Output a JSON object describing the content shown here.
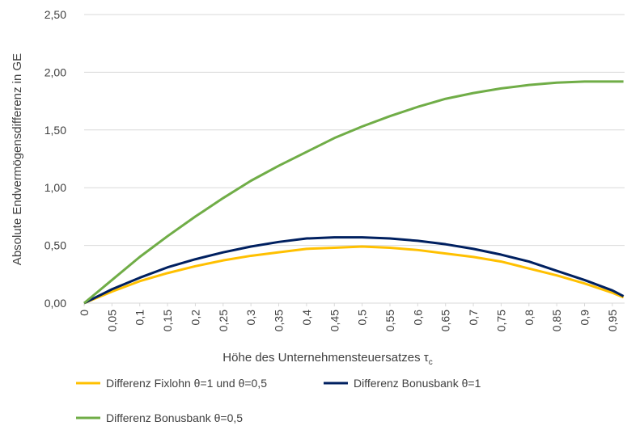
{
  "chart_data": {
    "type": "line",
    "y_label": "Absolute Endvermögensdifferenz in GE",
    "x_label": {
      "text": "Höhe des Unternehmensteuersatzes τ",
      "subscript": "c"
    },
    "x": [
      0,
      0.05,
      0.1,
      0.15,
      0.2,
      0.25,
      0.3,
      0.35,
      0.4,
      0.45,
      0.5,
      0.55,
      0.6,
      0.65,
      0.7,
      0.75,
      0.8,
      0.85,
      0.9,
      0.95,
      0.97
    ],
    "xlim": [
      0,
      0.972
    ],
    "xticks": [
      {
        "value": 0,
        "label": "0"
      },
      {
        "value": 0.05,
        "label": "0,05"
      },
      {
        "value": 0.1,
        "label": "0,1"
      },
      {
        "value": 0.15,
        "label": "0,15"
      },
      {
        "value": 0.2,
        "label": "0,2"
      },
      {
        "value": 0.25,
        "label": "0,25"
      },
      {
        "value": 0.3,
        "label": "0,3"
      },
      {
        "value": 0.35,
        "label": "0,35"
      },
      {
        "value": 0.4,
        "label": "0,4"
      },
      {
        "value": 0.45,
        "label": "0,45"
      },
      {
        "value": 0.5,
        "label": "0,5"
      },
      {
        "value": 0.55,
        "label": "0,55"
      },
      {
        "value": 0.6,
        "label": "0,6"
      },
      {
        "value": 0.65,
        "label": "0,65"
      },
      {
        "value": 0.7,
        "label": "0,7"
      },
      {
        "value": 0.75,
        "label": "0,75"
      },
      {
        "value": 0.8,
        "label": "0,8"
      },
      {
        "value": 0.85,
        "label": "0,85"
      },
      {
        "value": 0.9,
        "label": "0,9"
      },
      {
        "value": 0.95,
        "label": "0,95"
      }
    ],
    "ylim": [
      0,
      2.5
    ],
    "yticks": [
      {
        "value": 0,
        "label": "0,00"
      },
      {
        "value": 0.5,
        "label": "0,50"
      },
      {
        "value": 1,
        "label": "1,00"
      },
      {
        "value": 1.5,
        "label": "1,50"
      },
      {
        "value": 2,
        "label": "2,00"
      },
      {
        "value": 2.5,
        "label": "2,50"
      }
    ],
    "grid": true,
    "legend": "bottom",
    "series": [
      {
        "name": "Differenz Fixlohn θ=1 und θ=0,5",
        "color": "#ffc000",
        "values": [
          0,
          0.1,
          0.19,
          0.26,
          0.32,
          0.37,
          0.41,
          0.44,
          0.47,
          0.48,
          0.49,
          0.48,
          0.46,
          0.43,
          0.4,
          0.36,
          0.3,
          0.24,
          0.17,
          0.09,
          0.05
        ]
      },
      {
        "name": "Differenz Bonusbank θ=1",
        "color": "#002060",
        "values": [
          0,
          0.12,
          0.22,
          0.31,
          0.38,
          0.44,
          0.49,
          0.53,
          0.56,
          0.57,
          0.57,
          0.56,
          0.54,
          0.51,
          0.47,
          0.42,
          0.36,
          0.28,
          0.2,
          0.11,
          0.06
        ]
      },
      {
        "name": "Differenz Bonusbank θ=0,5",
        "color": "#70ad47",
        "values": [
          0,
          0.2,
          0.4,
          0.58,
          0.75,
          0.91,
          1.06,
          1.19,
          1.31,
          1.43,
          1.53,
          1.62,
          1.7,
          1.77,
          1.82,
          1.86,
          1.89,
          1.91,
          1.92,
          1.92,
          1.92
        ]
      }
    ]
  }
}
